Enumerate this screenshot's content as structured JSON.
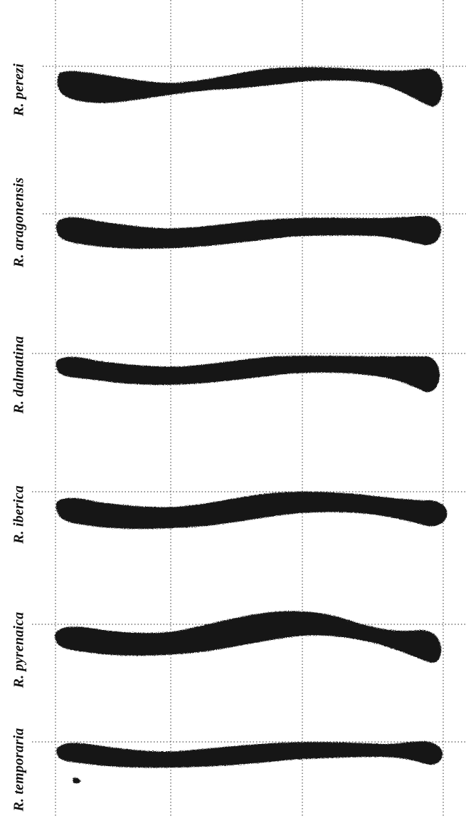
{
  "figure": {
    "ink_color": "#141414",
    "grid_color": "#555555",
    "background": "#ffffff",
    "grid_style": "dotted",
    "specimens": [
      {
        "label": "R. perezi"
      },
      {
        "label": "R. aragonensis"
      },
      {
        "label": "R. dalmatina"
      },
      {
        "label": "R. iberica"
      },
      {
        "label": "R. pyrenaica"
      },
      {
        "label": "R. temporaria"
      }
    ]
  }
}
